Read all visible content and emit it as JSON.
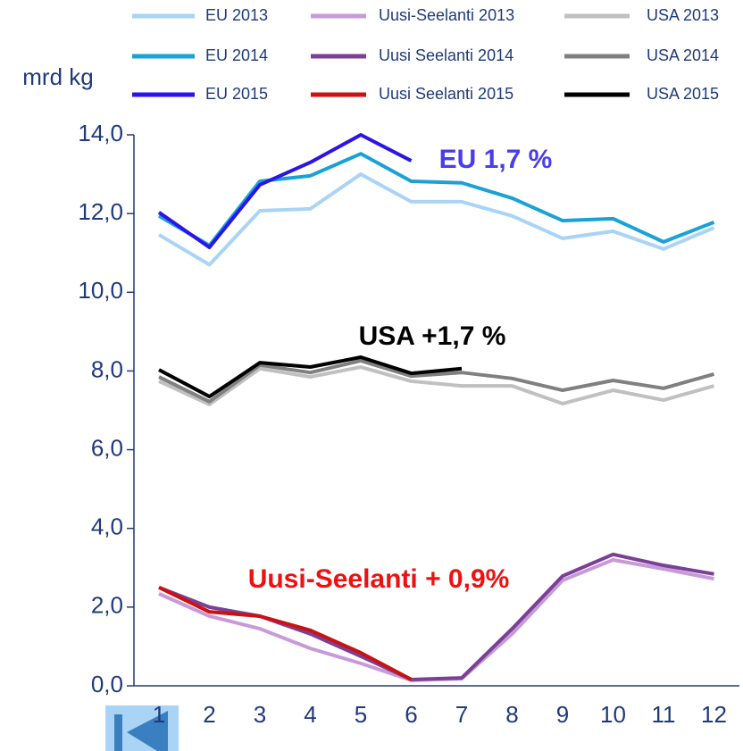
{
  "chart_data": {
    "type": "line",
    "y_label": "mrd kg",
    "categories": [
      "1",
      "2",
      "3",
      "4",
      "5",
      "6",
      "7",
      "8",
      "9",
      "10",
      "11",
      "12"
    ],
    "ylim": [
      0,
      14
    ],
    "yticks": [
      {
        "value": 0,
        "label": "0,0"
      },
      {
        "value": 2,
        "label": "2,0"
      },
      {
        "value": 4,
        "label": "4,0"
      },
      {
        "value": 6,
        "label": "6,0"
      },
      {
        "value": 8,
        "label": "8,0"
      },
      {
        "value": 10,
        "label": "10,0"
      },
      {
        "value": 12,
        "label": "12,0"
      },
      {
        "value": 14,
        "label": "14,0"
      }
    ],
    "series": [
      {
        "name": "EU 2013",
        "color": "#a9d4f5",
        "values": [
          11.46,
          10.7,
          12.07,
          12.12,
          13.0,
          12.3,
          12.3,
          11.94,
          11.37,
          11.55,
          11.1,
          11.64
        ]
      },
      {
        "name": "EU 2014",
        "color": "#1aa2d6",
        "values": [
          11.94,
          11.19,
          12.82,
          12.96,
          13.52,
          12.82,
          12.78,
          12.39,
          11.82,
          11.87,
          11.28,
          11.78
        ]
      },
      {
        "name": "EU 2015",
        "color": "#2a14e8",
        "values": [
          12.03,
          11.14,
          12.73,
          13.3,
          14.0,
          13.34,
          null,
          null,
          null,
          null,
          null,
          null
        ]
      },
      {
        "name": "Uusi-Seelanti 2013",
        "color": "#c89ad8",
        "values": [
          2.34,
          1.77,
          1.45,
          0.95,
          0.57,
          0.14,
          0.18,
          1.32,
          2.68,
          3.2,
          2.97,
          2.72
        ]
      },
      {
        "name": "Uusi Seelanti 2014",
        "color": "#7b3f96",
        "values": [
          2.5,
          2.0,
          1.77,
          1.32,
          0.75,
          0.16,
          0.2,
          1.45,
          2.79,
          3.34,
          3.06,
          2.84
        ]
      },
      {
        "name": "Uusi Seelanti 2015",
        "color": "#cc1111",
        "values": [
          2.5,
          1.88,
          1.77,
          1.41,
          0.84,
          0.16,
          null,
          null,
          null,
          null,
          null,
          null
        ]
      },
      {
        "name": "USA 2013",
        "color": "#c0c0c0",
        "values": [
          7.74,
          7.15,
          8.06,
          7.85,
          8.1,
          7.74,
          7.62,
          7.62,
          7.17,
          7.51,
          7.26,
          7.62
        ]
      },
      {
        "name": "USA 2014",
        "color": "#808080",
        "values": [
          7.85,
          7.22,
          8.15,
          7.96,
          8.26,
          7.87,
          7.96,
          7.81,
          7.51,
          7.76,
          7.56,
          7.92
        ]
      },
      {
        "name": "USA 2015",
        "color": "#000000",
        "values": [
          8.03,
          7.35,
          8.21,
          8.1,
          8.35,
          7.94,
          8.06,
          null,
          null,
          null,
          null,
          null
        ]
      }
    ],
    "annotations": [
      {
        "text": "EU 1,7 %",
        "color": "#4a3cf0"
      },
      {
        "text": "USA +1,7 %",
        "color": "#000000"
      },
      {
        "text": "Uusi-Seelanti + 0,9%",
        "color": "#ee1111"
      }
    ]
  }
}
